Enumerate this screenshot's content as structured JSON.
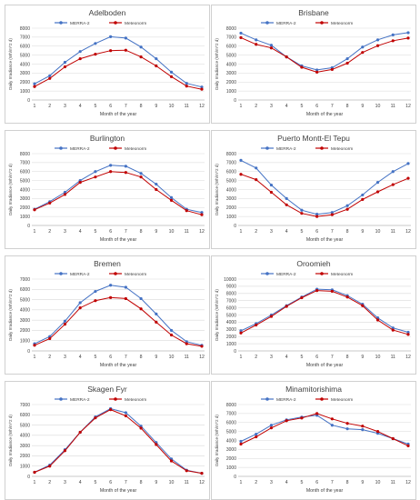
{
  "colors": {
    "merra": "#4472C4",
    "meteonorm": "#C00000",
    "grid": "#d9d9d9",
    "axis": "#bfbfbf",
    "text": "#404040"
  },
  "chart_data": [
    {
      "type": "line",
      "title": "Adelboden",
      "xlabel": "Month of the year",
      "ylabel": "Daily Irradiance (Wh/m^2 d)",
      "x": [
        1,
        2,
        3,
        4,
        5,
        6,
        7,
        8,
        9,
        10,
        11,
        12
      ],
      "ylim": [
        0,
        8000
      ],
      "yticks": [
        0,
        1000,
        2000,
        3000,
        4000,
        5000,
        6000,
        7000,
        8000
      ],
      "legend_position": "top",
      "grid": true,
      "series": [
        {
          "name": "MERRA-2",
          "values": [
            1800,
            2700,
            4200,
            5400,
            6300,
            7050,
            6900,
            5900,
            4600,
            3100,
            1850,
            1450
          ]
        },
        {
          "name": "Meteonorm",
          "values": [
            1500,
            2400,
            3700,
            4600,
            5100,
            5500,
            5550,
            4800,
            3800,
            2600,
            1550,
            1200
          ]
        }
      ]
    },
    {
      "type": "line",
      "title": "Brisbane",
      "xlabel": "Month of the year",
      "ylabel": "Daily Irradiance (Wh/m^2 d)",
      "x": [
        1,
        2,
        3,
        4,
        5,
        6,
        7,
        8,
        9,
        10,
        11,
        12
      ],
      "ylim": [
        0,
        8000
      ],
      "yticks": [
        0,
        1000,
        2000,
        3000,
        4000,
        5000,
        6000,
        7000,
        8000
      ],
      "legend_position": "top",
      "grid": true,
      "series": [
        {
          "name": "MERRA-2",
          "values": [
            7450,
            6700,
            6100,
            4800,
            3800,
            3350,
            3600,
            4600,
            5900,
            6700,
            7250,
            7500
          ]
        },
        {
          "name": "Meteonorm",
          "values": [
            6950,
            6200,
            5800,
            4800,
            3650,
            3100,
            3400,
            4100,
            5300,
            6050,
            6600,
            6900
          ]
        }
      ]
    },
    {
      "type": "line",
      "title": "Burlington",
      "xlabel": "Month of the year",
      "ylabel": "Daily Irradiance (Wh/m^2 d)",
      "x": [
        1,
        2,
        3,
        4,
        5,
        6,
        7,
        8,
        9,
        10,
        11,
        12
      ],
      "ylim": [
        0,
        8000
      ],
      "yticks": [
        0,
        1000,
        2000,
        3000,
        4000,
        5000,
        6000,
        7000,
        8000
      ],
      "legend_position": "top",
      "grid": true,
      "series": [
        {
          "name": "MERRA-2",
          "values": [
            1800,
            2650,
            3700,
            5000,
            6000,
            6700,
            6600,
            5800,
            4600,
            3100,
            1800,
            1450
          ]
        },
        {
          "name": "Meteonorm",
          "values": [
            1750,
            2500,
            3450,
            4800,
            5400,
            6000,
            5900,
            5400,
            4000,
            2800,
            1650,
            1200
          ]
        }
      ]
    },
    {
      "type": "line",
      "title": "Puerto Montt-El Tepu",
      "xlabel": "Month of the year",
      "ylabel": "Daily Irradiance (Wh/m^2 d)",
      "x": [
        1,
        2,
        3,
        4,
        5,
        6,
        7,
        8,
        9,
        10,
        11,
        12
      ],
      "ylim": [
        0,
        8000
      ],
      "yticks": [
        0,
        1000,
        2000,
        3000,
        4000,
        5000,
        6000,
        7000,
        8000
      ],
      "legend_position": "top",
      "grid": true,
      "series": [
        {
          "name": "MERRA-2",
          "values": [
            7250,
            6400,
            4500,
            3000,
            1700,
            1250,
            1450,
            2200,
            3400,
            4800,
            6000,
            6900
          ]
        },
        {
          "name": "Meteonorm",
          "values": [
            5700,
            5100,
            3700,
            2300,
            1350,
            1000,
            1200,
            1800,
            2900,
            3750,
            4550,
            5250
          ]
        }
      ]
    },
    {
      "type": "line",
      "title": "Bremen",
      "xlabel": "Month of the year",
      "ylabel": "Daily Irradiance (Wh/m^2 d)",
      "x": [
        1,
        2,
        3,
        4,
        5,
        6,
        7,
        8,
        9,
        10,
        11,
        12
      ],
      "ylim": [
        0,
        7000
      ],
      "yticks": [
        0,
        1000,
        2000,
        3000,
        4000,
        5000,
        6000,
        7000
      ],
      "legend_position": "top",
      "grid": true,
      "series": [
        {
          "name": "MERRA-2",
          "values": [
            700,
            1400,
            2900,
            4700,
            5800,
            6400,
            6200,
            5100,
            3600,
            2000,
            900,
            550
          ]
        },
        {
          "name": "Meteonorm",
          "values": [
            550,
            1200,
            2600,
            4200,
            4900,
            5200,
            5100,
            4100,
            2800,
            1550,
            700,
            450
          ]
        }
      ]
    },
    {
      "type": "line",
      "title": "Oroomieh",
      "xlabel": "Month of the year",
      "ylabel": "Daily Irradiance (Wh/m^2 d)",
      "x": [
        1,
        2,
        3,
        4,
        5,
        6,
        7,
        8,
        9,
        10,
        11,
        12
      ],
      "ylim": [
        0,
        10000
      ],
      "yticks": [
        0,
        1000,
        2000,
        3000,
        4000,
        5000,
        6000,
        7000,
        8000,
        9000,
        10000
      ],
      "legend_position": "top",
      "grid": true,
      "series": [
        {
          "name": "MERRA-2",
          "values": [
            2800,
            3800,
            5000,
            6300,
            7500,
            8600,
            8500,
            7700,
            6500,
            4600,
            3200,
            2600
          ]
        },
        {
          "name": "Meteonorm",
          "values": [
            2500,
            3600,
            4800,
            6200,
            7400,
            8400,
            8300,
            7500,
            6300,
            4300,
            2900,
            2300
          ]
        }
      ]
    },
    {
      "type": "line",
      "title": "Skagen Fyr",
      "xlabel": "Month of the year",
      "ylabel": "Daily Irradiance (Wh/m^2 d)",
      "x": [
        1,
        2,
        3,
        4,
        5,
        6,
        7,
        8,
        9,
        10,
        11,
        12
      ],
      "ylim": [
        0,
        7000
      ],
      "yticks": [
        0,
        1000,
        2000,
        3000,
        4000,
        5000,
        6000,
        7000
      ],
      "legend_position": "top",
      "grid": true,
      "series": [
        {
          "name": "MERRA-2",
          "values": [
            400,
            1100,
            2600,
            4300,
            5800,
            6600,
            6200,
            4900,
            3300,
            1700,
            600,
            300
          ]
        },
        {
          "name": "Meteonorm",
          "values": [
            400,
            1000,
            2500,
            4300,
            5700,
            6500,
            5900,
            4700,
            3100,
            1500,
            550,
            300
          ]
        }
      ]
    },
    {
      "type": "line",
      "title": "Minamitorishima",
      "xlabel": "Month of the year",
      "ylabel": "Daily Irradiance (Wh/m^2 d)",
      "x": [
        1,
        2,
        3,
        4,
        5,
        6,
        7,
        8,
        9,
        10,
        11,
        12
      ],
      "ylim": [
        0,
        8000
      ],
      "yticks": [
        0,
        1000,
        2000,
        3000,
        4000,
        5000,
        6000,
        7000,
        8000
      ],
      "legend_position": "top",
      "grid": true,
      "series": [
        {
          "name": "MERRA-2",
          "values": [
            3900,
            4700,
            5700,
            6300,
            6600,
            6800,
            5700,
            5300,
            5200,
            4800,
            4200,
            3600
          ]
        },
        {
          "name": "Meteonorm",
          "values": [
            3600,
            4400,
            5400,
            6200,
            6500,
            7000,
            6400,
            5900,
            5600,
            5000,
            4200,
            3400
          ]
        }
      ]
    }
  ]
}
